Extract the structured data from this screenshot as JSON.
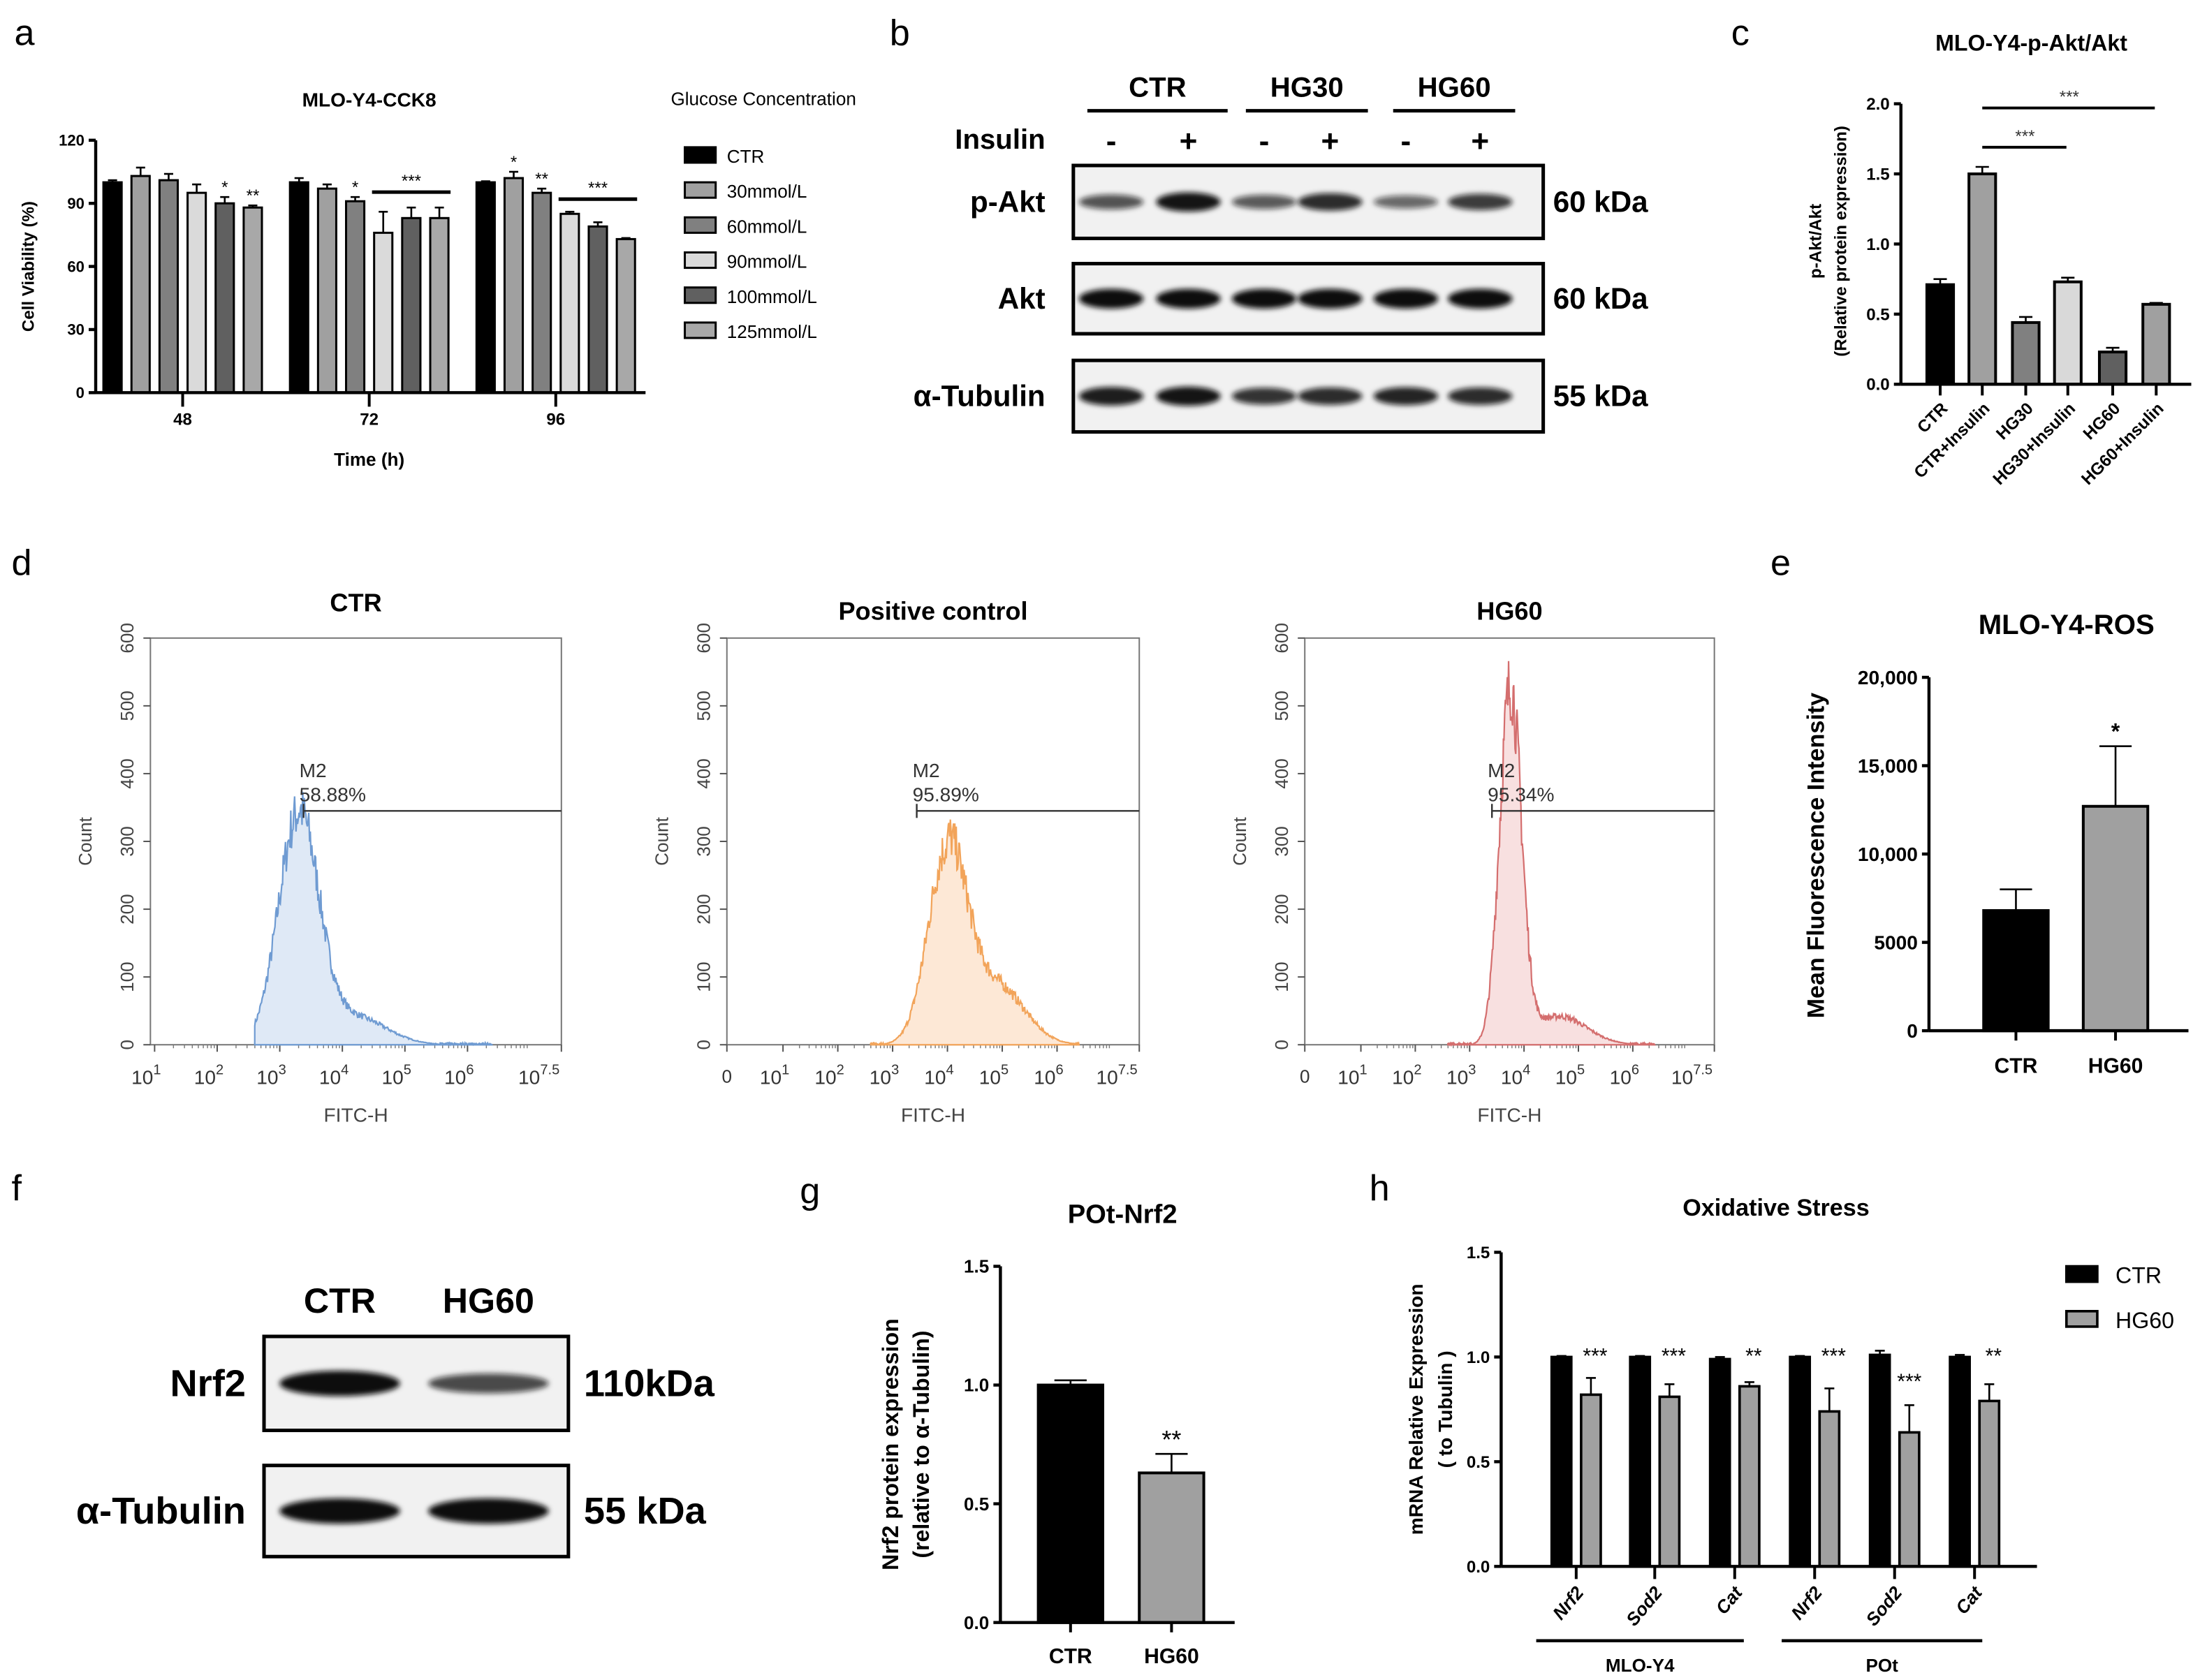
{
  "panel_labels": [
    "a",
    "b",
    "c",
    "d",
    "e",
    "f",
    "g",
    "h"
  ],
  "chart_data": [
    {
      "id": "a",
      "type": "bar",
      "title": "MLO-Y4-CCK8",
      "ylabel": "Cell Viability (%)",
      "xlabel": "Time (h)",
      "legend_title": "Glucose Concentration",
      "legend_position": "right",
      "categories": [
        "48",
        "72",
        "96"
      ],
      "ylim": [
        0,
        120
      ],
      "yticks": [
        0,
        30,
        60,
        90,
        120
      ],
      "ytick_labels": [
        "0",
        "30",
        "60",
        "90",
        "120"
      ],
      "series": [
        {
          "name": "CTR",
          "color": "#000000",
          "values": [
            100,
            100,
            100
          ],
          "errors": [
            1,
            2,
            0.5
          ]
        },
        {
          "name": "30mmol/L",
          "color": "#a0a0a0",
          "values": [
            103,
            97,
            102
          ],
          "errors": [
            4,
            2,
            3
          ]
        },
        {
          "name": "60mmol/L",
          "color": "#808080",
          "values": [
            101,
            91,
            95
          ],
          "errors": [
            3,
            2,
            2
          ]
        },
        {
          "name": "90mmol/L",
          "color": "#dadada",
          "values": [
            95,
            76,
            85
          ],
          "errors": [
            4,
            10,
            1
          ]
        },
        {
          "name": "100mmol/L",
          "color": "#606060",
          "values": [
            90,
            83,
            79
          ],
          "errors": [
            3,
            5,
            2
          ]
        },
        {
          "name": "125mmol/L",
          "color": "#a8a8a8",
          "values": [
            88,
            83,
            73
          ],
          "errors": [
            1,
            5,
            0.5
          ]
        }
      ],
      "significance": [
        {
          "group": 0,
          "series": 4,
          "label": "*"
        },
        {
          "group": 0,
          "series": 5,
          "label": "**"
        },
        {
          "group": 1,
          "series": 2,
          "label": "*"
        },
        {
          "group": 2,
          "series": 1,
          "label": "*"
        },
        {
          "group": 2,
          "series": 2,
          "label": "**"
        }
      ],
      "brackets": [
        {
          "group": 1,
          "from": 3,
          "to": 5,
          "label": "***"
        },
        {
          "group": 2,
          "from": 3,
          "to": 5,
          "label": "***"
        }
      ]
    },
    {
      "id": "b",
      "type": "western_blot",
      "groups": [
        "CTR",
        "HG30",
        "HG60"
      ],
      "treatment_label": "Insulin",
      "lanes": [
        "-",
        "+",
        "-",
        "+",
        "-",
        "+"
      ],
      "rows": [
        {
          "label": "p-Akt",
          "size": "60 kDa",
          "intensities": [
            0.55,
            0.95,
            0.5,
            0.8,
            0.4,
            0.7
          ]
        },
        {
          "label": "Akt",
          "size": "60 kDa",
          "intensities": [
            1,
            1,
            1,
            1,
            1,
            1
          ]
        },
        {
          "label": "α-Tubulin",
          "size": "55 kDa",
          "intensities": [
            0.9,
            0.95,
            0.75,
            0.8,
            0.85,
            0.8
          ]
        }
      ]
    },
    {
      "id": "c",
      "type": "bar",
      "title": "MLO-Y4-p-Akt/Akt",
      "ylabel": [
        "p-Akt/Akt",
        "(Relative protein expression)"
      ],
      "categories": [
        "CTR",
        "CTR+Insulin",
        "HG30",
        "HG30+Insulin",
        "HG60",
        "HG60+Insulin"
      ],
      "values": [
        0.71,
        1.5,
        0.44,
        0.73,
        0.23,
        0.57
      ],
      "errors": [
        0.04,
        0.05,
        0.04,
        0.03,
        0.03,
        0.01
      ],
      "colors": [
        "#000000",
        "#a0a0a0",
        "#808080",
        "#d9d9d9",
        "#606060",
        "#a0a0a0"
      ],
      "ylim": [
        0,
        2.0
      ],
      "yticks": [
        0,
        0.5,
        1.0,
        1.5,
        2.0
      ],
      "ytick_labels": [
        "0.0",
        "0.5",
        "1.0",
        "1.5",
        "2.0"
      ],
      "brackets": [
        {
          "from": 1,
          "to": 3,
          "label": "***"
        },
        {
          "from": 1,
          "to": 5,
          "label": "***"
        }
      ]
    },
    {
      "id": "d",
      "type": "histogram",
      "ylabel": "Count",
      "xlabel": "FITC-H",
      "ylim": [
        0,
        600
      ],
      "yticks": [
        0,
        100,
        200,
        300,
        400,
        500,
        600
      ],
      "ytick_labels": [
        "0",
        "100",
        "200",
        "300",
        "400",
        "500",
        "600"
      ],
      "xtick_base": "10",
      "plots": [
        {
          "title": "CTR",
          "gate": "M2",
          "percent": "58.88%",
          "color": "#6f9bd2",
          "fill": "#dfe9f6",
          "gate_log": 3.38,
          "gate_count": 345,
          "peak_log": 3.3,
          "peak_count": 340,
          "spread": 0.32,
          "tail": 0.12,
          "zero_tick": false,
          "xtick_exponents": [
            "1",
            "2",
            "3",
            "4",
            "5",
            "6",
            "7.5"
          ]
        },
        {
          "title": "Positive control",
          "gate": "M2",
          "percent": "95.89%",
          "color": "#f2a45a",
          "fill": "#fde8d6",
          "gate_log": 3.44,
          "gate_count": 345,
          "peak_log": 4.0,
          "peak_count": 290,
          "spread": 0.35,
          "tail": 0.3,
          "zero_tick": true,
          "zero_label": "0",
          "xtick_exponents": [
            "1",
            "2",
            "3",
            "4",
            "5",
            "6",
            "7.5"
          ]
        },
        {
          "title": "HG60",
          "gate": "M2",
          "percent": "95.34%",
          "color": "#d46e6e",
          "fill": "#f8e0e0",
          "gate_log": 3.41,
          "gate_count": 345,
          "peak_log": 3.75,
          "peak_count": 525,
          "spread": 0.2,
          "tail": 0.08,
          "zero_tick": true,
          "zero_label": "0",
          "xtick_exponents": [
            "1",
            "2",
            "3",
            "4",
            "5",
            "6",
            "7.5"
          ]
        }
      ]
    },
    {
      "id": "e",
      "type": "bar",
      "title": "MLO-Y4-ROS",
      "ylabel": "Mean Fluorescence Intensity",
      "categories": [
        "CTR",
        "HG60"
      ],
      "values": [
        6800,
        12700
      ],
      "errors": [
        1200,
        3400
      ],
      "colors": [
        "#000000",
        "#a0a0a0"
      ],
      "significance": [
        "",
        "*"
      ],
      "ylim": [
        0,
        20000
      ],
      "yticks": [
        0,
        5000,
        10000,
        15000,
        20000
      ],
      "ytick_labels": [
        "0",
        "5000",
        "10,000",
        "15,000",
        "20,000"
      ]
    },
    {
      "id": "f",
      "type": "western_blot",
      "groups": [
        "CTR",
        "HG60"
      ],
      "rows": [
        {
          "label": "Nrf2",
          "size": "110kDa",
          "intensities": [
            1,
            0.6
          ]
        },
        {
          "label": "α-Tubulin",
          "size": "55 kDa",
          "intensities": [
            1,
            1
          ]
        }
      ]
    },
    {
      "id": "g",
      "type": "bar",
      "title": "POt-Nrf2",
      "ylabel": [
        "Nrf2 protein expression",
        "(relative to α-Tubulin)"
      ],
      "categories": [
        "CTR",
        "HG60"
      ],
      "values": [
        1.0,
        0.63
      ],
      "errors": [
        0.02,
        0.08
      ],
      "colors": [
        "#000000",
        "#a0a0a0"
      ],
      "significance": [
        "",
        "**"
      ],
      "ylim": [
        0,
        1.5
      ],
      "yticks": [
        0,
        0.5,
        1.0,
        1.5
      ],
      "ytick_labels": [
        "0.0",
        "0.5",
        "1.0",
        "1.5"
      ]
    },
    {
      "id": "h",
      "type": "bar",
      "title": "Oxidative Stress",
      "ylabel": [
        "mRNA Relative Expression",
        "( to Tubulin )"
      ],
      "categories": [
        "Nrf2",
        "Sod2",
        "Cat",
        "Nrf2",
        "Sod2",
        "Cat"
      ],
      "category_groups": [
        {
          "label": "MLO-Y4",
          "from": 0,
          "to": 2
        },
        {
          "label": "POt",
          "from": 3,
          "to": 5
        }
      ],
      "series": [
        {
          "name": "CTR",
          "color": "#000000",
          "values": [
            1.0,
            1.0,
            0.99,
            1.0,
            1.01,
            1.0
          ],
          "errors": [
            0.005,
            0.005,
            0.01,
            0.005,
            0.02,
            0.01
          ]
        },
        {
          "name": "HG60",
          "color": "#a0a0a0",
          "values": [
            0.82,
            0.81,
            0.86,
            0.74,
            0.64,
            0.79
          ],
          "errors": [
            0.08,
            0.06,
            0.02,
            0.11,
            0.13,
            0.08
          ]
        }
      ],
      "significance": [
        "***",
        "***",
        "**",
        "***",
        "***",
        "**"
      ],
      "legend_position": "right",
      "ylim": [
        0,
        1.5
      ],
      "yticks": [
        0,
        0.5,
        1.0,
        1.5
      ],
      "ytick_labels": [
        "0.0",
        "0.5",
        "1.0",
        "1.5"
      ]
    }
  ]
}
